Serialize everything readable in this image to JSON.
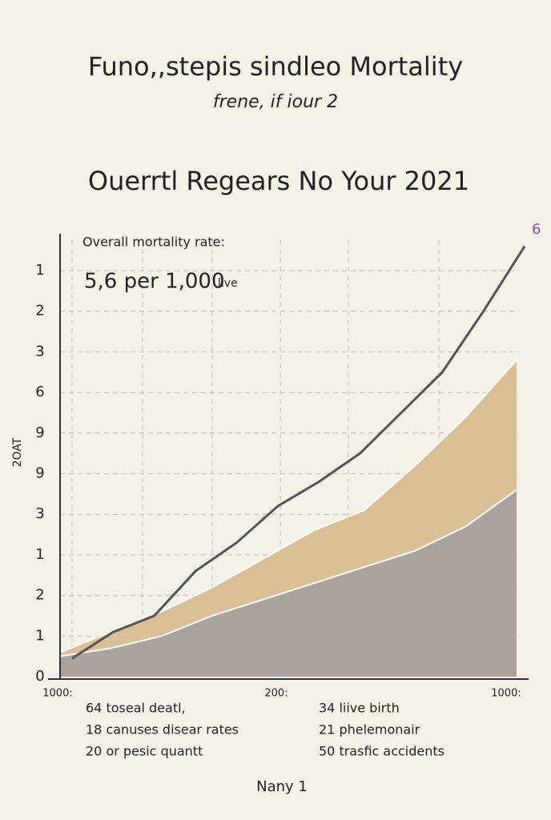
{
  "chart_data": {
    "type": "area",
    "title": "Funo,,stepis sindleo Mortality",
    "subtitle": "frene, if iour 2",
    "heading": "Ouerrtl Regears No Your 2021",
    "annotation": {
      "label": "Overall mortality rate:",
      "value": "5,6 per 1,000",
      "unit": "live"
    },
    "corner_label": "6",
    "y_label": "2OAT",
    "y_labels": [
      "1",
      "2",
      "3",
      "6",
      "9",
      "9",
      "3",
      "1",
      "2",
      "1",
      "0"
    ],
    "x_labels": [
      "1000:",
      "200:",
      "1000:"
    ],
    "ylim": [
      0,
      10
    ],
    "grid": true,
    "line": {
      "color": "#555555",
      "values": [
        0.45,
        1.1,
        1.5,
        2.6,
        3.3,
        4.2,
        4.8,
        5.5,
        6.5,
        7.5,
        9.0,
        10.6
      ]
    },
    "series": [
      {
        "color": "#d9bf93",
        "values": [
          0.6,
          1.1,
          1.6,
          2.2,
          2.9,
          3.6,
          4.1,
          5.2,
          6.4,
          7.8
        ]
      },
      {
        "color": "#a8a39f",
        "values": [
          0.5,
          0.7,
          1.0,
          1.5,
          1.9,
          2.3,
          2.7,
          3.1,
          3.7,
          4.6
        ]
      }
    ],
    "notes": [
      "64 toseal deatl,",
      "18 canuses disear rates",
      "20 or pesic quantt",
      "34 liive birth",
      "21 phelemonair",
      "50 trasfic accidents"
    ],
    "footer": "Nany 1"
  }
}
